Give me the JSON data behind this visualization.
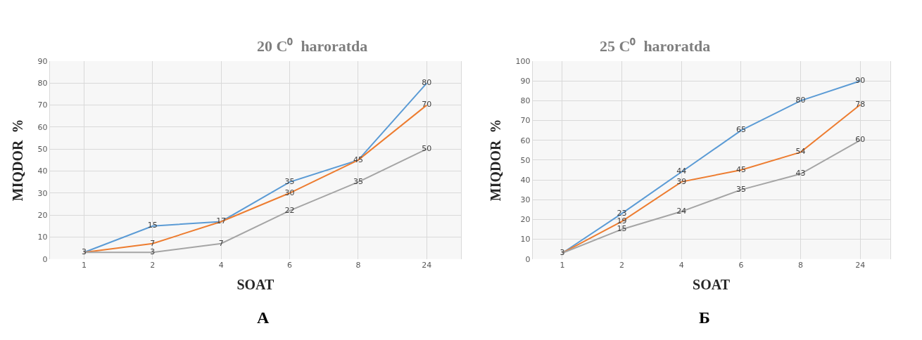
{
  "chart_data": [
    {
      "type": "line",
      "title": "20 C⁰  haroratda",
      "xlabel": "SOAT",
      "ylabel": "MIQDOR  %",
      "categories": [
        "1",
        "2",
        "4",
        "6",
        "8",
        "24"
      ],
      "ylim": [
        0,
        90
      ],
      "yticks": [
        0,
        10,
        20,
        30,
        40,
        50,
        60,
        70,
        80,
        90
      ],
      "grid": true,
      "marker": "none",
      "line_style": "solid",
      "annotations": [
        "A"
      ],
      "series": [
        {
          "color": "#5b9bd5",
          "values": [
            3,
            15,
            17,
            35,
            45,
            80
          ],
          "value_labels": [
            null,
            "15",
            null,
            "35",
            null,
            "80"
          ]
        },
        {
          "color": "#ed7d31",
          "values": [
            3,
            7,
            17,
            30,
            45,
            70
          ],
          "value_labels": [
            null,
            "7",
            "17",
            "30",
            "45",
            "70"
          ]
        },
        {
          "color": "#a5a5a5",
          "values": [
            3,
            3,
            7,
            22,
            35,
            50
          ],
          "value_labels": [
            "3",
            "3",
            "7",
            "22",
            "35",
            "50"
          ]
        }
      ]
    },
    {
      "type": "line",
      "title": "25 C⁰  haroratda",
      "xlabel": "SOAT",
      "ylabel": "MIQDOR  %",
      "categories": [
        "1",
        "2",
        "4",
        "6",
        "8",
        "24"
      ],
      "ylim": [
        0,
        100
      ],
      "yticks": [
        0,
        10,
        20,
        30,
        40,
        50,
        60,
        70,
        80,
        90,
        100
      ],
      "grid": true,
      "marker": "none",
      "line_style": "solid",
      "annotations": [
        "Б"
      ],
      "series": [
        {
          "color": "#5b9bd5",
          "values": [
            3,
            23,
            44,
            65,
            80,
            90
          ],
          "value_labels": [
            null,
            "23",
            "44",
            "65",
            "80",
            "90"
          ]
        },
        {
          "color": "#ed7d31",
          "values": [
            3,
            19,
            39,
            45,
            54,
            78
          ],
          "value_labels": [
            null,
            "19",
            "39",
            "45",
            "54",
            "78"
          ]
        },
        {
          "color": "#a5a5a5",
          "values": [
            3,
            15,
            24,
            35,
            43,
            60
          ],
          "value_labels": [
            "3",
            "15",
            "24",
            "35",
            "43",
            "60"
          ]
        }
      ]
    }
  ]
}
